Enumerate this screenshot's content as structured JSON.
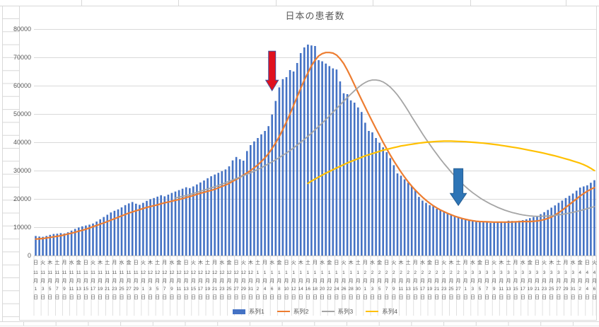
{
  "title": "日本の患者数",
  "legend": [
    {
      "label": "系列1",
      "color": "#4472C4",
      "swatch": "bar"
    },
    {
      "label": "系列2",
      "color": "#ED7D31",
      "swatch": "line"
    },
    {
      "label": "系列3",
      "color": "#A5A5A5",
      "swatch": "line"
    },
    {
      "label": "系列4",
      "color": "#FFC000",
      "swatch": "line"
    }
  ],
  "y_axis": {
    "labels": [
      "0",
      "10000",
      "20000",
      "30000",
      "40000",
      "50000",
      "60000",
      "70000",
      "80000"
    ]
  },
  "x_axis": {
    "labels": [
      {
        "w": "日",
        "m": "11",
        "d": "1"
      },
      {
        "w": "火",
        "m": "11",
        "d": "3"
      },
      {
        "w": "木",
        "m": "11",
        "d": "5"
      },
      {
        "w": "土",
        "m": "11",
        "d": "7"
      },
      {
        "w": "月",
        "m": "11",
        "d": "9"
      },
      {
        "w": "水",
        "m": "11",
        "d": "11"
      },
      {
        "w": "金",
        "m": "11",
        "d": "13"
      },
      {
        "w": "日",
        "m": "11",
        "d": "15"
      },
      {
        "w": "火",
        "m": "11",
        "d": "17"
      },
      {
        "w": "木",
        "m": "11",
        "d": "19"
      },
      {
        "w": "土",
        "m": "11",
        "d": "21"
      },
      {
        "w": "月",
        "m": "11",
        "d": "23"
      },
      {
        "w": "水",
        "m": "11",
        "d": "25"
      },
      {
        "w": "金",
        "m": "11",
        "d": "27"
      },
      {
        "w": "日",
        "m": "11",
        "d": "29"
      },
      {
        "w": "火",
        "m": "12",
        "d": "1"
      },
      {
        "w": "木",
        "m": "12",
        "d": "3"
      },
      {
        "w": "土",
        "m": "12",
        "d": "5"
      },
      {
        "w": "月",
        "m": "12",
        "d": "7"
      },
      {
        "w": "水",
        "m": "12",
        "d": "9"
      },
      {
        "w": "金",
        "m": "12",
        "d": "11"
      },
      {
        "w": "日",
        "m": "12",
        "d": "13"
      },
      {
        "w": "火",
        "m": "12",
        "d": "15"
      },
      {
        "w": "木",
        "m": "12",
        "d": "17"
      },
      {
        "w": "土",
        "m": "12",
        "d": "19"
      },
      {
        "w": "月",
        "m": "12",
        "d": "21"
      },
      {
        "w": "水",
        "m": "12",
        "d": "23"
      },
      {
        "w": "金",
        "m": "12",
        "d": "25"
      },
      {
        "w": "日",
        "m": "12",
        "d": "27"
      },
      {
        "w": "火",
        "m": "12",
        "d": "29"
      },
      {
        "w": "木",
        "m": "12",
        "d": "31"
      },
      {
        "w": "土",
        "m": "1",
        "d": "2"
      },
      {
        "w": "月",
        "m": "1",
        "d": "4"
      },
      {
        "w": "水",
        "m": "1",
        "d": "6"
      },
      {
        "w": "金",
        "m": "1",
        "d": "8"
      },
      {
        "w": "日",
        "m": "1",
        "d": "10"
      },
      {
        "w": "火",
        "m": "1",
        "d": "12"
      },
      {
        "w": "木",
        "m": "1",
        "d": "14"
      },
      {
        "w": "土",
        "m": "1",
        "d": "16"
      },
      {
        "w": "月",
        "m": "1",
        "d": "18"
      },
      {
        "w": "水",
        "m": "1",
        "d": "20"
      },
      {
        "w": "金",
        "m": "1",
        "d": "22"
      },
      {
        "w": "日",
        "m": "1",
        "d": "24"
      },
      {
        "w": "火",
        "m": "1",
        "d": "26"
      },
      {
        "w": "木",
        "m": "1",
        "d": "28"
      },
      {
        "w": "土",
        "m": "1",
        "d": "30"
      },
      {
        "w": "月",
        "m": "2",
        "d": "1"
      },
      {
        "w": "水",
        "m": "2",
        "d": "3"
      },
      {
        "w": "金",
        "m": "2",
        "d": "5"
      },
      {
        "w": "日",
        "m": "2",
        "d": "7"
      },
      {
        "w": "火",
        "m": "2",
        "d": "9"
      },
      {
        "w": "木",
        "m": "2",
        "d": "11"
      },
      {
        "w": "土",
        "m": "2",
        "d": "13"
      },
      {
        "w": "月",
        "m": "2",
        "d": "15"
      },
      {
        "w": "水",
        "m": "2",
        "d": "17"
      },
      {
        "w": "金",
        "m": "2",
        "d": "19"
      },
      {
        "w": "日",
        "m": "2",
        "d": "21"
      },
      {
        "w": "火",
        "m": "2",
        "d": "23"
      },
      {
        "w": "木",
        "m": "2",
        "d": "25"
      },
      {
        "w": "土",
        "m": "2",
        "d": "27"
      },
      {
        "w": "月",
        "m": "3",
        "d": "1"
      },
      {
        "w": "水",
        "m": "3",
        "d": "3"
      },
      {
        "w": "金",
        "m": "3",
        "d": "5"
      },
      {
        "w": "日",
        "m": "3",
        "d": "7"
      },
      {
        "w": "火",
        "m": "3",
        "d": "9"
      },
      {
        "w": "木",
        "m": "3",
        "d": "11"
      },
      {
        "w": "土",
        "m": "3",
        "d": "13"
      },
      {
        "w": "月",
        "m": "3",
        "d": "15"
      },
      {
        "w": "水",
        "m": "3",
        "d": "17"
      },
      {
        "w": "金",
        "m": "3",
        "d": "19"
      },
      {
        "w": "日",
        "m": "3",
        "d": "21"
      },
      {
        "w": "火",
        "m": "3",
        "d": "23"
      },
      {
        "w": "木",
        "m": "3",
        "d": "25"
      },
      {
        "w": "土",
        "m": "3",
        "d": "27"
      },
      {
        "w": "月",
        "m": "3",
        "d": "29"
      },
      {
        "w": "水",
        "m": "3",
        "d": "31"
      },
      {
        "w": "金",
        "m": "4",
        "d": "2"
      },
      {
        "w": "日",
        "m": "4",
        "d": "4"
      },
      {
        "w": "火",
        "m": "4",
        "d": "6"
      }
    ]
  },
  "chart_data": {
    "type": "combo",
    "title": "日本の患者数",
    "ylim": [
      0,
      80000
    ],
    "y_step": 10000,
    "grid": "horizontal",
    "legend_position": "bottom",
    "x_start": "11月1日",
    "x_end": "4月6日",
    "x_tick_interval_days": 2,
    "series": [
      {
        "name": "系列1",
        "type": "bar",
        "color": "#4472C4",
        "start_index": 0,
        "values": [
          6900,
          6700,
          6600,
          6900,
          7300,
          7600,
          7700,
          7900,
          7800,
          8200,
          8800,
          9400,
          9900,
          10300,
          10600,
          10900,
          11300,
          12000,
          12800,
          13600,
          14400,
          15200,
          15800,
          16300,
          17000,
          17800,
          18400,
          18900,
          18300,
          17900,
          18600,
          19300,
          19900,
          20300,
          20800,
          21300,
          20900,
          21500,
          22100,
          22600,
          23100,
          23600,
          24100,
          23800,
          24400,
          25100,
          25800,
          26500,
          27300,
          28000,
          28600,
          29200,
          29800,
          30400,
          31500,
          33600,
          34800,
          34000,
          33500,
          36900,
          39000,
          40300,
          41500,
          42800,
          44000,
          45700,
          49800,
          54600,
          59400,
          62300,
          63000,
          65500,
          65000,
          68000,
          71500,
          73500,
          74500,
          74200,
          74000,
          69000,
          68600,
          67800,
          66900,
          66100,
          65700,
          61500,
          57300,
          57000,
          54800,
          54000,
          52300,
          50700,
          46900,
          44000,
          43500,
          41500,
          39800,
          38200,
          36500,
          34400,
          31900,
          29000,
          28200,
          26900,
          25700,
          24400,
          23200,
          20700,
          19400,
          18600,
          17800,
          17400,
          16500,
          16100,
          15400,
          14800,
          14400,
          14000,
          13600,
          13200,
          12800,
          12500,
          12400,
          12100,
          11900,
          11900,
          11700,
          11500,
          11600,
          11800,
          11900,
          12000,
          12300,
          12200,
          12100,
          12300,
          12500,
          12800,
          13200,
          13600,
          14000,
          14600,
          15300,
          16100,
          16900,
          17700,
          18600,
          19400,
          20300,
          21100,
          21900,
          22900,
          24000,
          24400,
          24800,
          25700,
          26600
        ]
      },
      {
        "name": "系列2",
        "type": "line",
        "color": "#ED7D31",
        "start_index": 0,
        "values": [
          5800,
          5900,
          6000,
          6200,
          6400,
          6600,
          6800,
          7000,
          7300,
          7600,
          7900,
          8200,
          8600,
          8900,
          9300,
          9700,
          10200,
          10600,
          11100,
          11500,
          12000,
          12500,
          13000,
          13500,
          14000,
          14500,
          15000,
          15400,
          15800,
          16200,
          16600,
          17000,
          17300,
          17600,
          17900,
          18300,
          18600,
          18900,
          19200,
          19500,
          19800,
          20100,
          20500,
          20800,
          21200,
          21600,
          22000,
          22300,
          22700,
          23000,
          23400,
          23900,
          24400,
          24900,
          25500,
          26200,
          26900,
          27600,
          28400,
          29200,
          30000,
          31000,
          32000,
          33200,
          34500,
          36000,
          37800,
          39800,
          42000,
          44500,
          47200,
          50000,
          53000,
          56000,
          59000,
          62000,
          64500,
          67000,
          69000,
          70500,
          71300,
          71700,
          71700,
          71500,
          70800,
          69500,
          67800,
          65500,
          63000,
          60300,
          57600,
          55000,
          52400,
          49800,
          47300,
          44800,
          42400,
          40000,
          37700,
          35500,
          33400,
          31400,
          29500,
          27700,
          26000,
          24500,
          23100,
          21800,
          20600,
          19500,
          18500,
          17600,
          16800,
          16100,
          15500,
          14900,
          14400,
          13900,
          13500,
          13100,
          12800,
          12500,
          12300,
          12100,
          12000,
          11950,
          11900,
          11850,
          11800,
          11800,
          11800,
          11800,
          11800,
          11850,
          11900,
          11950,
          12000,
          12000,
          12000,
          12100,
          12200,
          12400,
          12700,
          13100,
          13600,
          14300,
          15100,
          16000,
          17000,
          18000,
          19000,
          20000,
          21000,
          21900,
          22700,
          23400,
          24000
        ]
      },
      {
        "name": "系列3",
        "type": "line",
        "color": "#A5A5A5",
        "start_index": 39,
        "values": [
          20300,
          20600,
          20900,
          21200,
          21500,
          21900,
          22300,
          22700,
          23100,
          23500,
          23900,
          24300,
          24700,
          25200,
          25700,
          26200,
          26700,
          27200,
          27700,
          28200,
          28700,
          29200,
          29800,
          30400,
          31000,
          31700,
          32400,
          33100,
          33800,
          34600,
          35400,
          36200,
          37100,
          38000,
          39000,
          40000,
          41000,
          42100,
          43200,
          44400,
          45600,
          46800,
          48000,
          49300,
          50600,
          51900,
          53200,
          54500,
          55800,
          57000,
          58200,
          59300,
          60300,
          61100,
          61700,
          62000,
          62000,
          61800,
          61300,
          60500,
          59500,
          58200,
          56700,
          55000,
          53100,
          51100,
          49000,
          47000,
          45000,
          43000,
          41100,
          39300,
          37500,
          35800,
          34100,
          32500,
          31000,
          29500,
          28100,
          26800,
          25500,
          24300,
          23200,
          22200,
          21300,
          20400,
          19600,
          18900,
          18200,
          17600,
          17000,
          16500,
          16000,
          15600,
          15200,
          14900,
          14600,
          14350,
          14150,
          14000,
          13900,
          13850,
          13850,
          13900,
          13950,
          14050,
          14200,
          14350,
          14550,
          14750,
          15000,
          15250,
          15550,
          15850,
          16200,
          16550,
          16900,
          17300
        ]
      },
      {
        "name": "系列4",
        "type": "line",
        "color": "#FFC000",
        "start_index": 76,
        "values": [
          25500,
          26300,
          27000,
          27700,
          28400,
          29100,
          29700,
          30300,
          30900,
          31500,
          32100,
          32700,
          33200,
          33700,
          34200,
          34700,
          35200,
          35600,
          36000,
          36400,
          36800,
          37200,
          37500,
          37800,
          38100,
          38400,
          38700,
          38900,
          39100,
          39300,
          39500,
          39700,
          39850,
          40000,
          40100,
          40200,
          40300,
          40350,
          40400,
          40400,
          40400,
          40350,
          40300,
          40250,
          40200,
          40100,
          40000,
          39900,
          39800,
          39700,
          39550,
          39400,
          39250,
          39100,
          38900,
          38700,
          38500,
          38300,
          38100,
          37900,
          37650,
          37400,
          37150,
          36900,
          36650,
          36400,
          36100,
          35800,
          35500,
          35200,
          34850,
          34500,
          34150,
          33800,
          33400,
          33000,
          32600,
          32100,
          31500,
          30800,
          30000
        ]
      }
    ],
    "annotations": [
      {
        "id": "red-arrow",
        "shape": "down-arrow",
        "color": "#E0111E",
        "outline": "#44549E",
        "at_index": 66,
        "at_label": "1月6日",
        "from_value": 72200,
        "to_value": 58200
      },
      {
        "id": "blue-arrow",
        "shape": "down-arrow",
        "color": "#2E75B6",
        "outline": "#255E94",
        "at_index": 118,
        "at_label": "2月27日",
        "from_value": 30700,
        "to_value": 17700
      }
    ]
  }
}
